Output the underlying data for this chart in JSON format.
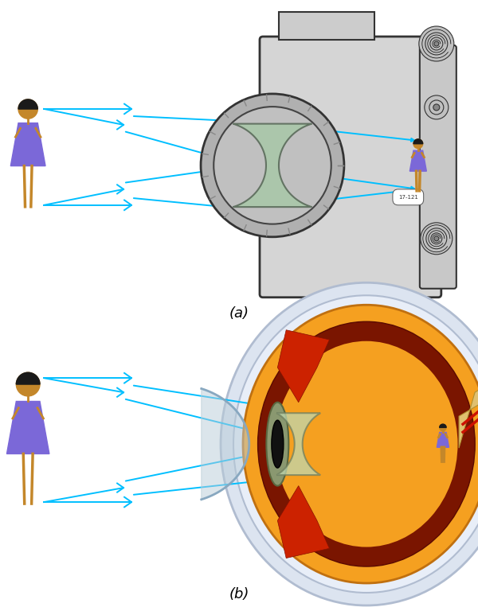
{
  "bg_color": "#ffffff",
  "ray_color": "#00BFFF",
  "ray_lw": 1.4,
  "label_a": "(a)",
  "label_b": "(b)",
  "label_fontsize": 13,
  "fig_width": 6.0,
  "fig_height": 7.68,
  "dpi": 100
}
